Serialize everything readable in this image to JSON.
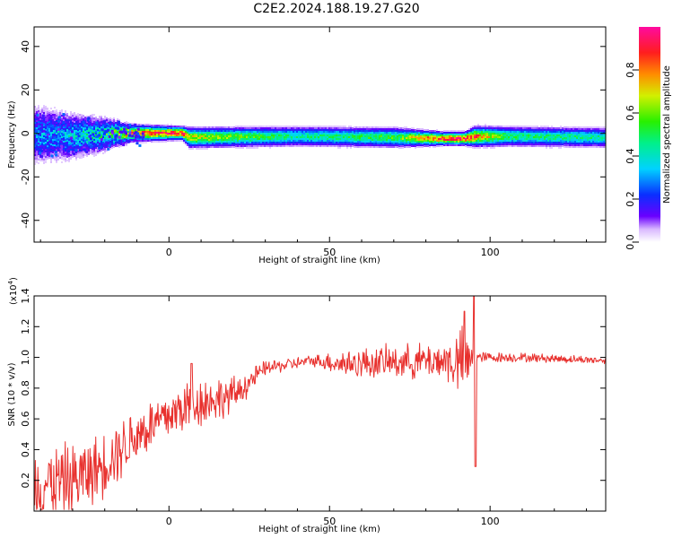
{
  "title": "C2E2.2024.188.19.27.G20",
  "chart_data": [
    {
      "type": "heatmap",
      "xlabel": "Height of straight line (km)",
      "ylabel": "Frequency (Hz)",
      "xlim": [
        -42,
        136
      ],
      "ylim": [
        -50,
        49
      ],
      "xticks": [
        0,
        50,
        100
      ],
      "yticks": [
        -40,
        -20,
        0,
        20,
        40
      ],
      "colorbar": {
        "label": "Normalized spectral amplitude",
        "range": [
          0,
          1
        ],
        "ticks": [
          "0.0",
          "0.2",
          "0.4",
          "0.6",
          "0.8"
        ]
      },
      "ridge": [
        {
          "x": -42,
          "freq": 0,
          "amp": 0.3,
          "spread": 9
        },
        {
          "x": -30,
          "freq": -1,
          "amp": 0.35,
          "spread": 7
        },
        {
          "x": -20,
          "freq": 0,
          "amp": 0.45,
          "spread": 5
        },
        {
          "x": -12,
          "freq": 0.5,
          "amp": 0.85,
          "spread": 2.5
        },
        {
          "x": 4,
          "freq": 0.5,
          "amp": 0.9,
          "spread": 2
        },
        {
          "x": 6,
          "freq": -1.5,
          "amp": 0.7,
          "spread": 3
        },
        {
          "x": 40,
          "freq": -1,
          "amp": 0.45,
          "spread": 3
        },
        {
          "x": 70,
          "freq": -1.5,
          "amp": 0.55,
          "spread": 3
        },
        {
          "x": 85,
          "freq": -2,
          "amp": 0.9,
          "spread": 2
        },
        {
          "x": 92,
          "freq": -2,
          "amp": 0.9,
          "spread": 2
        },
        {
          "x": 95,
          "freq": -1,
          "amp": 0.85,
          "spread": 3
        },
        {
          "x": 105,
          "freq": -1,
          "amp": 0.5,
          "spread": 3
        },
        {
          "x": 136,
          "freq": -1.5,
          "amp": 0.45,
          "spread": 3
        }
      ]
    },
    {
      "type": "line",
      "xlabel": "Height of straight line (km)",
      "ylabel": "SNR (10 * v/v)",
      "scale_label": "(x10",
      "scale_exponent": "4",
      "scale_suffix": ")",
      "xlim": [
        -42,
        136
      ],
      "ylim": [
        0,
        1.4
      ],
      "xticks": [
        0,
        50,
        100
      ],
      "yticks": [
        "0.2",
        "0.4",
        "0.6",
        "0.8",
        "1.0",
        "1.2",
        "1.4"
      ],
      "color": "#e8312e",
      "trend": [
        {
          "x": -42,
          "y": 0.17,
          "noise": 0.22
        },
        {
          "x": -30,
          "y": 0.2,
          "noise": 0.2
        },
        {
          "x": -22,
          "y": 0.28,
          "noise": 0.18
        },
        {
          "x": -10,
          "y": 0.5,
          "noise": 0.16
        },
        {
          "x": 0,
          "y": 0.62,
          "noise": 0.14
        },
        {
          "x": 7,
          "y": 0.7,
          "noise": 0.15
        },
        {
          "x": 20,
          "y": 0.75,
          "noise": 0.1
        },
        {
          "x": 30,
          "y": 0.93,
          "noise": 0.04
        },
        {
          "x": 45,
          "y": 0.98,
          "noise": 0.03
        },
        {
          "x": 55,
          "y": 0.96,
          "noise": 0.08
        },
        {
          "x": 70,
          "y": 0.97,
          "noise": 0.09
        },
        {
          "x": 85,
          "y": 0.98,
          "noise": 0.1
        },
        {
          "x": 92,
          "y": 0.96,
          "noise": 0.2
        },
        {
          "x": 97,
          "y": 1.0,
          "noise": 0.03
        },
        {
          "x": 110,
          "y": 1.0,
          "noise": 0.025
        },
        {
          "x": 136,
          "y": 0.98,
          "noise": 0.02
        }
      ],
      "spikes": [
        {
          "x": 7,
          "y": 0.96
        },
        {
          "x": 95,
          "y": 1.4
        },
        {
          "x": 95.5,
          "y": 0.29
        },
        {
          "x": 92,
          "y": 1.3
        }
      ]
    }
  ]
}
